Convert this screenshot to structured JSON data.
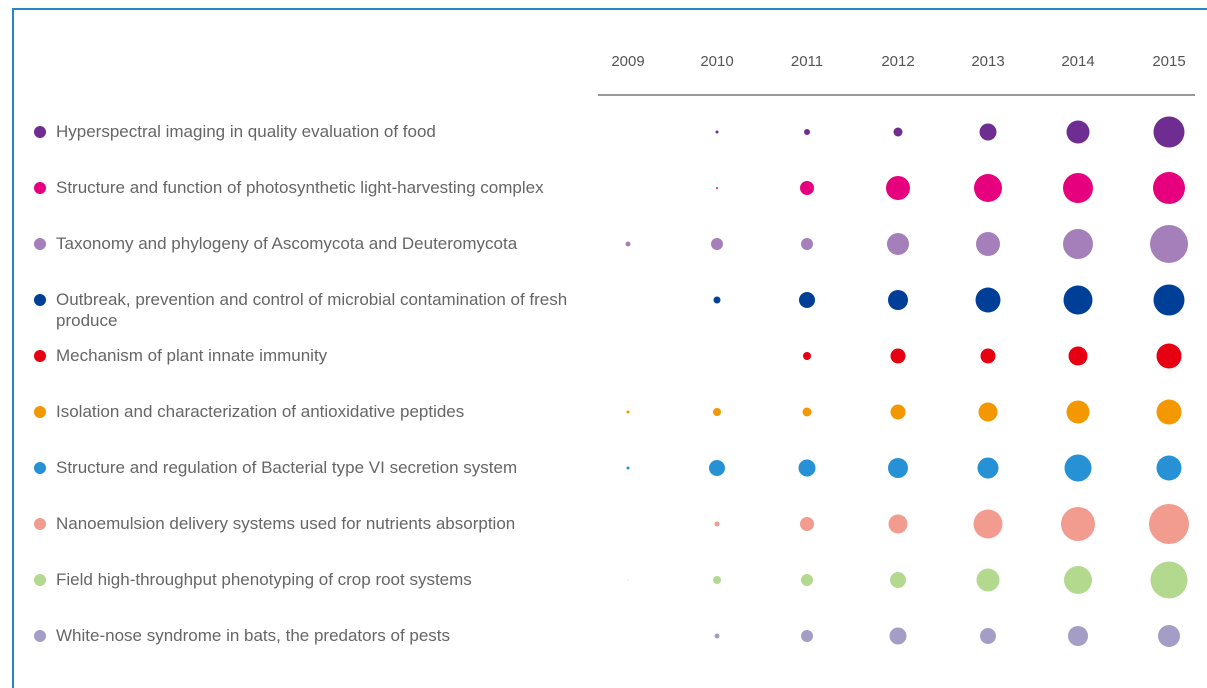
{
  "chart_data": {
    "type": "bubble-matrix",
    "categories": [
      "2009",
      "2010",
      "2011",
      "2012",
      "2013",
      "2014",
      "2015"
    ],
    "series": [
      {
        "name": "Hyperspectral imaging in quality evaluation of food",
        "color": "#6f2c91",
        "values": [
          null,
          3,
          6,
          9,
          17,
          23,
          31
        ]
      },
      {
        "name": "Structure and function of photosynthetic light-harvesting complex",
        "color": "#e6007e",
        "values": [
          null,
          2,
          14,
          24,
          28,
          30,
          32
        ]
      },
      {
        "name": "Taxonomy and phylogeny of Ascomycota and Deuteromycota",
        "color": "#a57fba",
        "values": [
          5,
          12,
          12,
          22,
          24,
          30,
          38
        ]
      },
      {
        "name": "Outbreak, prevention and control of microbial contamination of fresh produce",
        "color": "#003f98",
        "values": [
          null,
          7,
          16,
          20,
          25,
          29,
          31
        ]
      },
      {
        "name": "Mechanism of plant innate immunity",
        "color": "#e60012",
        "values": [
          null,
          null,
          8,
          15,
          15,
          19,
          25
        ]
      },
      {
        "name": "Isolation and characterization of antioxidative peptides",
        "color": "#f39800",
        "values": [
          3,
          8,
          9,
          15,
          19,
          23,
          25
        ]
      },
      {
        "name": "Structure and regulation of Bacterial type VI secretion system",
        "color": "#2791d6",
        "values": [
          3,
          16,
          17,
          20,
          21,
          27,
          25
        ]
      },
      {
        "name": "Nanoemulsion delivery systems used for nutrients absorption",
        "color": "#f29c8f",
        "values": [
          null,
          5,
          14,
          19,
          29,
          34,
          40
        ]
      },
      {
        "name": "Field high-throughput phenotyping of crop root systems",
        "color": "#b3d98f",
        "values": [
          1,
          8,
          12,
          16,
          23,
          28,
          37
        ]
      },
      {
        "name": "White-nose syndrome in bats, the predators of pests",
        "color": "#a49dc5",
        "values": [
          null,
          5,
          12,
          17,
          16,
          20,
          22
        ]
      }
    ]
  }
}
